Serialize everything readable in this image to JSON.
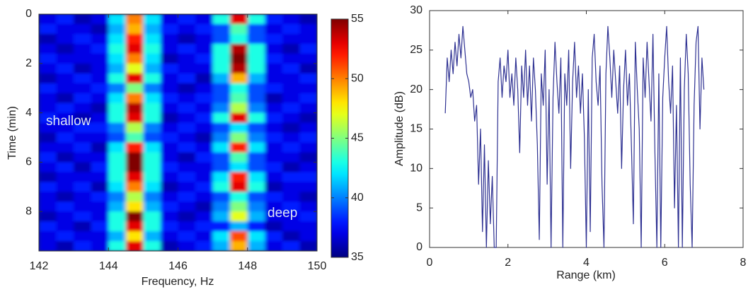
{
  "chart_data": [
    {
      "type": "heatmap",
      "xlabel": "Frequency, Hz",
      "ylabel": "Time (min)",
      "x": [
        142.25,
        142.75,
        143.25,
        143.75,
        144.25,
        144.75,
        145.25,
        145.75,
        146.25,
        146.75,
        147.25,
        147.75,
        148.25,
        148.75,
        149.25,
        149.75
      ],
      "y": [
        0.2,
        0.6,
        1.0,
        1.4,
        1.8,
        2.2,
        2.6,
        3.0,
        3.4,
        3.8,
        4.2,
        4.6,
        5.0,
        5.4,
        5.8,
        6.2,
        6.6,
        7.0,
        7.4,
        7.8,
        8.2,
        8.6,
        9.0,
        9.4
      ],
      "values": [
        [
          37,
          38,
          36,
          37,
          42,
          50,
          42,
          37,
          38,
          37,
          43,
          53,
          43,
          38,
          37,
          36
        ],
        [
          38,
          37,
          37,
          36,
          41,
          49,
          41,
          38,
          37,
          38,
          39,
          44,
          39,
          37,
          38,
          37
        ],
        [
          36,
          37,
          38,
          37,
          42,
          52,
          42,
          37,
          36,
          37,
          39,
          43,
          39,
          38,
          37,
          37
        ],
        [
          37,
          36,
          37,
          38,
          43,
          53,
          43,
          37,
          38,
          37,
          43,
          54,
          43,
          37,
          36,
          38
        ],
        [
          38,
          37,
          37,
          37,
          42,
          50,
          42,
          36,
          37,
          38,
          43,
          55,
          43,
          38,
          37,
          37
        ],
        [
          37,
          38,
          36,
          37,
          41,
          47,
          41,
          38,
          37,
          37,
          43,
          54,
          43,
          37,
          38,
          36
        ],
        [
          36,
          37,
          38,
          37,
          43,
          53,
          43,
          37,
          38,
          36,
          41,
          49,
          41,
          37,
          37,
          38
        ],
        [
          38,
          37,
          37,
          38,
          40,
          45,
          40,
          37,
          36,
          37,
          39,
          43,
          39,
          38,
          37,
          37
        ],
        [
          37,
          36,
          38,
          37,
          42,
          50,
          42,
          38,
          37,
          38,
          39,
          44,
          39,
          36,
          37,
          38
        ],
        [
          37,
          38,
          37,
          36,
          43,
          54,
          43,
          37,
          38,
          37,
          40,
          46,
          40,
          37,
          38,
          37
        ],
        [
          38,
          37,
          36,
          37,
          43,
          53,
          43,
          36,
          37,
          38,
          43,
          53,
          43,
          38,
          37,
          36
        ],
        [
          37,
          37,
          38,
          38,
          40,
          46,
          40,
          37,
          38,
          37,
          39,
          42,
          39,
          37,
          36,
          37
        ],
        [
          36,
          38,
          37,
          37,
          39,
          44,
          39,
          38,
          37,
          36,
          40,
          45,
          40,
          38,
          37,
          38
        ],
        [
          37,
          37,
          38,
          36,
          42,
          52,
          42,
          37,
          38,
          37,
          42,
          52,
          42,
          37,
          38,
          37
        ],
        [
          38,
          36,
          37,
          37,
          43,
          55,
          43,
          37,
          36,
          38,
          39,
          44,
          39,
          37,
          37,
          36
        ],
        [
          37,
          38,
          36,
          38,
          43,
          55,
          43,
          38,
          37,
          37,
          39,
          42,
          39,
          38,
          36,
          37
        ],
        [
          36,
          37,
          37,
          37,
          43,
          53,
          43,
          37,
          38,
          37,
          42,
          52,
          42,
          37,
          38,
          38
        ],
        [
          38,
          37,
          38,
          36,
          42,
          50,
          42,
          36,
          37,
          38,
          43,
          53,
          43,
          36,
          37,
          37
        ],
        [
          37,
          36,
          37,
          38,
          40,
          46,
          40,
          37,
          38,
          37,
          39,
          43,
          39,
          38,
          37,
          36
        ],
        [
          37,
          38,
          37,
          37,
          41,
          48,
          41,
          38,
          37,
          36,
          40,
          45,
          40,
          37,
          38,
          37
        ],
        [
          36,
          37,
          38,
          37,
          43,
          55,
          43,
          37,
          36,
          37,
          41,
          47,
          41,
          37,
          37,
          38
        ],
        [
          38,
          37,
          36,
          38,
          43,
          53,
          43,
          38,
          37,
          38,
          38,
          41,
          38,
          36,
          37,
          37
        ],
        [
          37,
          38,
          37,
          37,
          41,
          48,
          41,
          37,
          38,
          37,
          42,
          51,
          42,
          38,
          36,
          37
        ],
        [
          37,
          36,
          38,
          37,
          43,
          53,
          43,
          36,
          37,
          38,
          41,
          49,
          41,
          37,
          38,
          36
        ]
      ],
      "xlim": [
        142,
        150
      ],
      "xticks": [
        142,
        144,
        146,
        148,
        150
      ],
      "ylim": [
        0,
        9.6
      ],
      "yticks": [
        0,
        2,
        4,
        6,
        8
      ],
      "y_inverted": true,
      "colormap": "jet",
      "clim": [
        35,
        55
      ],
      "cticks": [
        35,
        40,
        45,
        50,
        55
      ],
      "annotations": [
        "shallow",
        "deep"
      ]
    },
    {
      "type": "line",
      "xlabel": "Range (km)",
      "ylabel": "Amplitude (dB)",
      "x": [
        0.4,
        0.45,
        0.5,
        0.55,
        0.6,
        0.65,
        0.7,
        0.75,
        0.8,
        0.85,
        0.9,
        0.95,
        1.0,
        1.05,
        1.1,
        1.15,
        1.2,
        1.25,
        1.3,
        1.35,
        1.4,
        1.45,
        1.5,
        1.55,
        1.6,
        1.65,
        1.7,
        1.75,
        1.8,
        1.85,
        1.9,
        1.95,
        2.0,
        2.05,
        2.1,
        2.15,
        2.2,
        2.25,
        2.3,
        2.35,
        2.4,
        2.45,
        2.5,
        2.55,
        2.6,
        2.65,
        2.7,
        2.75,
        2.8,
        2.85,
        2.9,
        2.95,
        3.0,
        3.05,
        3.1,
        3.15,
        3.2,
        3.25,
        3.3,
        3.35,
        3.4,
        3.45,
        3.5,
        3.55,
        3.6,
        3.65,
        3.7,
        3.75,
        3.8,
        3.85,
        3.9,
        3.95,
        4.0,
        4.05,
        4.1,
        4.15,
        4.2,
        4.25,
        4.3,
        4.35,
        4.4,
        4.45,
        4.5,
        4.55,
        4.6,
        4.65,
        4.7,
        4.75,
        4.8,
        4.85,
        4.9,
        4.95,
        5.0,
        5.05,
        5.1,
        5.15,
        5.2,
        5.25,
        5.3,
        5.35,
        5.4,
        5.45,
        5.5,
        5.55,
        5.6,
        5.65,
        5.7,
        5.75,
        5.8,
        5.85,
        5.9,
        5.95,
        6.0,
        6.05,
        6.1,
        6.15,
        6.2,
        6.25,
        6.3,
        6.35,
        6.4,
        6.45,
        6.5,
        6.55,
        6.6,
        6.65,
        6.7,
        6.75,
        6.8,
        6.85,
        6.9,
        6.95,
        7.0
      ],
      "values": [
        17,
        24,
        21,
        25,
        22,
        26,
        23,
        27,
        24,
        28,
        25,
        22,
        21,
        19,
        20,
        16,
        18,
        8,
        15,
        2,
        13,
        0,
        11,
        3,
        9,
        0,
        0,
        21,
        24,
        19,
        23,
        21,
        25,
        19,
        22,
        18,
        24,
        20,
        12,
        23,
        19,
        25,
        18,
        23,
        16,
        24,
        20,
        13,
        1,
        22,
        18,
        25,
        8,
        20,
        0,
        19,
        26,
        21,
        17,
        24,
        0,
        22,
        18,
        25,
        10,
        21,
        26,
        19,
        23,
        17,
        22,
        14,
        0,
        20,
        2,
        24,
        27,
        21,
        18,
        23,
        8,
        0,
        22,
        28,
        24,
        19,
        25,
        21,
        17,
        23,
        10,
        20,
        25,
        18,
        22,
        13,
        3,
        26,
        20,
        15,
        0,
        24,
        19,
        26,
        21,
        16,
        27,
        12,
        0,
        22,
        0,
        19,
        24,
        28,
        21,
        17,
        23,
        5,
        18,
        0,
        24,
        0,
        20,
        27,
        22,
        8,
        0,
        18,
        26,
        28,
        15,
        24,
        20
      ],
      "color": "#2e3192",
      "xlim": [
        0,
        8
      ],
      "xticks": [
        0,
        2,
        4,
        6,
        8
      ],
      "ylim": [
        0,
        30
      ],
      "yticks": [
        0,
        5,
        10,
        15,
        20,
        25,
        30
      ]
    }
  ]
}
